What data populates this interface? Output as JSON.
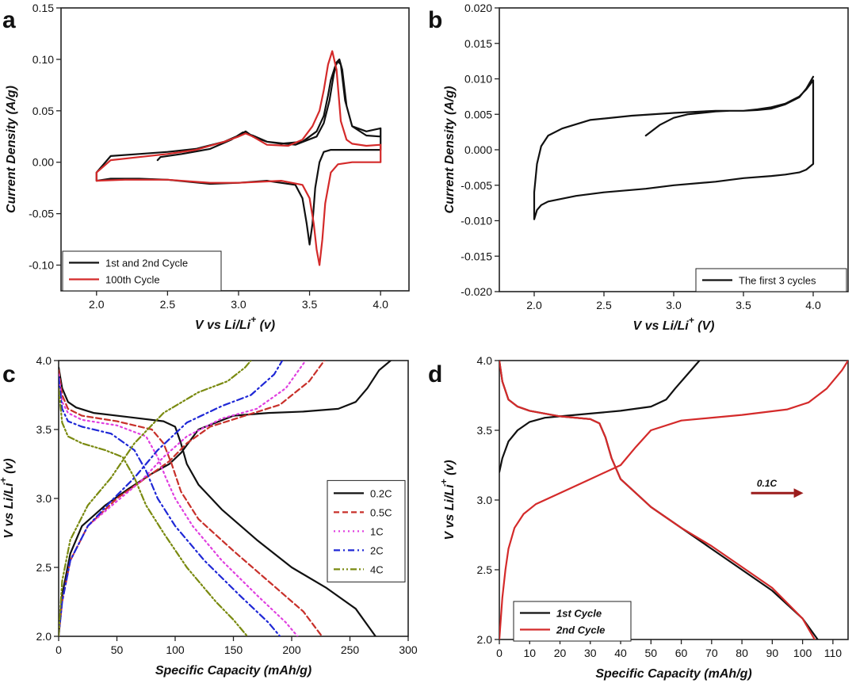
{
  "chart_data": [
    {
      "panel": "a",
      "type": "line",
      "xlabel": "V vs Li/Li",
      "xlabel_sup": "+",
      "xlabel_tail": " (v)",
      "ylabel": "Current Density (A/g)",
      "xlim": [
        1.75,
        4.2
      ],
      "ylim": [
        -0.125,
        0.15
      ],
      "xticks": [
        "2.0",
        "2.5",
        "3.0",
        "3.5",
        "4.0"
      ],
      "xtick_values": [
        2.0,
        2.5,
        3.0,
        3.5,
        4.0
      ],
      "yticks": [
        "-0.10",
        "-0.05",
        "0.00",
        "0.05",
        "0.10",
        "0.15"
      ],
      "ytick_values": [
        -0.1,
        -0.05,
        0.0,
        0.05,
        0.1,
        0.15
      ],
      "legend_position": "bottom-left",
      "series": [
        {
          "name": "1st and 2nd Cycle",
          "color": "#111111",
          "dash": "",
          "x": [
            2.43,
            2.45,
            2.6,
            2.8,
            2.95,
            3.03,
            3.1,
            3.2,
            3.4,
            3.55,
            3.6,
            3.64,
            3.67,
            3.69,
            3.71,
            3.73,
            3.76,
            3.8,
            3.9,
            4.0,
            4.0,
            3.95,
            3.8,
            3.65,
            3.6,
            3.57,
            3.54,
            3.52,
            3.5,
            3.48,
            3.45,
            3.4,
            3.2,
            3.0,
            2.8,
            2.5,
            2.3,
            2.1,
            2.0,
            2.0,
            2.1,
            2.3,
            2.5,
            2.7,
            2.9,
            3.0,
            3.05,
            3.1,
            3.2,
            3.3,
            3.45,
            3.55,
            3.6,
            3.63,
            3.65,
            3.68,
            3.7,
            3.72,
            3.75,
            3.8,
            3.9,
            4.0
          ],
          "y": [
            0.002,
            0.005,
            0.008,
            0.013,
            0.022,
            0.029,
            0.026,
            0.02,
            0.017,
            0.025,
            0.038,
            0.06,
            0.085,
            0.097,
            0.1,
            0.09,
            0.055,
            0.035,
            0.03,
            0.033,
            0.012,
            0.012,
            0.012,
            0.012,
            0.01,
            0.0,
            -0.025,
            -0.06,
            -0.08,
            -0.06,
            -0.035,
            -0.022,
            -0.018,
            -0.02,
            -0.021,
            -0.017,
            -0.016,
            -0.016,
            -0.018,
            -0.01,
            0.006,
            0.008,
            0.01,
            0.013,
            0.02,
            0.026,
            0.03,
            0.025,
            0.02,
            0.018,
            0.02,
            0.03,
            0.045,
            0.065,
            0.08,
            0.093,
            0.098,
            0.095,
            0.06,
            0.035,
            0.026,
            0.025
          ]
        },
        {
          "name": "100th Cycle",
          "color": "#d42a2a",
          "dash": "",
          "x": [
            2.0,
            2.1,
            2.3,
            2.5,
            2.7,
            2.9,
            3.0,
            3.05,
            3.1,
            3.2,
            3.35,
            3.45,
            3.52,
            3.57,
            3.6,
            3.63,
            3.66,
            3.69,
            3.72,
            3.76,
            3.8,
            3.9,
            4.0,
            4.0,
            3.9,
            3.8,
            3.7,
            3.65,
            3.61,
            3.59,
            3.57,
            3.55,
            3.53,
            3.5,
            3.45,
            3.3,
            3.0,
            2.8,
            2.5,
            2.2,
            2.0,
            2.0
          ],
          "y": [
            -0.01,
            0.002,
            0.005,
            0.008,
            0.012,
            0.02,
            0.025,
            0.028,
            0.025,
            0.017,
            0.016,
            0.022,
            0.035,
            0.05,
            0.07,
            0.095,
            0.108,
            0.09,
            0.04,
            0.022,
            0.018,
            0.016,
            0.017,
            0.0,
            0.0,
            0.0,
            -0.002,
            -0.01,
            -0.04,
            -0.075,
            -0.1,
            -0.085,
            -0.06,
            -0.035,
            -0.022,
            -0.018,
            -0.02,
            -0.02,
            -0.017,
            -0.017,
            -0.018,
            -0.01
          ]
        }
      ]
    },
    {
      "panel": "b",
      "type": "line",
      "xlabel": "V vs Li/Li",
      "xlabel_sup": "+",
      "xlabel_tail": " (V)",
      "ylabel": "Current Density (A/g)",
      "xlim": [
        1.75,
        4.25
      ],
      "ylim": [
        -0.02,
        0.02
      ],
      "xticks": [
        "2.0",
        "2.5",
        "3.0",
        "3.5",
        "4.0"
      ],
      "xtick_values": [
        2.0,
        2.5,
        3.0,
        3.5,
        4.0
      ],
      "yticks": [
        "-0.020",
        "-0.015",
        "-0.010",
        "-0.005",
        "0.000",
        "0.005",
        "0.010",
        "0.015",
        "0.020"
      ],
      "ytick_values": [
        -0.02,
        -0.015,
        -0.01,
        -0.005,
        0.0,
        0.005,
        0.01,
        0.015,
        0.02
      ],
      "legend_position": "bottom-right",
      "series": [
        {
          "name": "The first 3 cycles",
          "color": "#111111",
          "dash": "",
          "x": [
            2.8,
            2.9,
            3.0,
            3.1,
            3.2,
            3.3,
            3.4,
            3.5,
            3.6,
            3.7,
            3.8,
            3.9,
            3.95,
            4.0,
            4.0,
            3.95,
            3.9,
            3.8,
            3.7,
            3.5,
            3.3,
            3.0,
            2.8,
            2.5,
            2.3,
            2.1,
            2.05,
            2.02,
            2.0,
            2.0,
            2.02,
            2.05,
            2.1,
            2.2,
            2.4,
            2.7,
            3.0,
            3.3,
            3.5,
            3.6,
            3.7,
            3.8,
            3.9,
            3.95,
            4.0
          ],
          "y": [
            0.002,
            0.0035,
            0.0045,
            0.005,
            0.0052,
            0.0054,
            0.0055,
            0.0055,
            0.0057,
            0.006,
            0.0065,
            0.0075,
            0.0085,
            0.0098,
            -0.002,
            -0.0028,
            -0.0032,
            -0.0035,
            -0.0037,
            -0.004,
            -0.0045,
            -0.005,
            -0.0055,
            -0.006,
            -0.0065,
            -0.0073,
            -0.0078,
            -0.0085,
            -0.0098,
            -0.006,
            -0.002,
            0.0005,
            0.002,
            0.003,
            0.0042,
            0.0048,
            0.0052,
            0.0055,
            0.0055,
            0.0056,
            0.0058,
            0.0064,
            0.0074,
            0.0086,
            0.0103
          ]
        }
      ]
    },
    {
      "panel": "c",
      "type": "line",
      "xlabel": "Specific Capacity (mAh/g)",
      "ylabel": "V vs Li/Li",
      "ylabel_sup": "+",
      "ylabel_tail": " (v)",
      "xlim": [
        0,
        300
      ],
      "ylim": [
        2.0,
        4.0
      ],
      "xticks": [
        "0",
        "50",
        "100",
        "150",
        "200",
        "250",
        "300"
      ],
      "xtick_values": [
        0,
        50,
        100,
        150,
        200,
        250,
        300
      ],
      "yticks": [
        "2.0",
        "2.5",
        "3.0",
        "3.5",
        "4.0"
      ],
      "ytick_values": [
        2.0,
        2.5,
        3.0,
        3.5,
        4.0
      ],
      "legend_position": "center-right",
      "series": [
        {
          "name": "0.2C",
          "color": "#111111",
          "dash": "",
          "charge": {
            "x": [
              0,
              3,
              10,
              20,
              40,
              60,
              80,
              95,
              105,
              120,
              150,
              180,
              210,
              240,
              255,
              265,
              275,
              285
            ],
            "y": [
              2.0,
              2.3,
              2.6,
              2.8,
              2.95,
              3.07,
              3.18,
              3.25,
              3.33,
              3.5,
              3.6,
              3.62,
              3.63,
              3.65,
              3.7,
              3.8,
              3.93,
              4.0
            ]
          },
          "discharge": {
            "x": [
              0,
              3,
              8,
              15,
              30,
              60,
              90,
              100,
              105,
              110,
              120,
              140,
              170,
              200,
              230,
              255,
              272
            ],
            "y": [
              3.95,
              3.8,
              3.7,
              3.66,
              3.62,
              3.59,
              3.56,
              3.52,
              3.4,
              3.25,
              3.1,
              2.92,
              2.7,
              2.5,
              2.35,
              2.2,
              2.0
            ]
          }
        },
        {
          "name": "0.5C",
          "color": "#c8302a",
          "dash": "7,4",
          "charge": {
            "x": [
              0,
              3,
              10,
              25,
              50,
              75,
              95,
              110,
              130,
              160,
              190,
              215,
              228
            ],
            "y": [
              2.0,
              2.25,
              2.55,
              2.8,
              3.0,
              3.15,
              3.27,
              3.4,
              3.52,
              3.6,
              3.68,
              3.85,
              4.0
            ]
          },
          "discharge": {
            "x": [
              0,
              3,
              8,
              20,
              50,
              80,
              90,
              97,
              105,
              120,
              150,
              180,
              210,
              226
            ],
            "y": [
              3.93,
              3.75,
              3.65,
              3.6,
              3.56,
              3.5,
              3.4,
              3.25,
              3.05,
              2.85,
              2.62,
              2.4,
              2.18,
              2.0
            ]
          }
        },
        {
          "name": "1C",
          "color": "#e040e0",
          "dash": "2,4",
          "charge": {
            "x": [
              0,
              3,
              10,
              25,
              50,
              70,
              90,
              110,
              140,
              170,
              195,
              212
            ],
            "y": [
              2.0,
              2.25,
              2.55,
              2.8,
              2.98,
              3.12,
              3.3,
              3.45,
              3.58,
              3.65,
              3.8,
              4.0
            ]
          },
          "discharge": {
            "x": [
              0,
              3,
              8,
              20,
              50,
              75,
              85,
              92,
              100,
              115,
              140,
              170,
              195,
              205
            ],
            "y": [
              3.9,
              3.7,
              3.62,
              3.57,
              3.53,
              3.45,
              3.3,
              3.15,
              3.0,
              2.8,
              2.55,
              2.3,
              2.1,
              2.0
            ]
          }
        },
        {
          "name": "2C",
          "color": "#1f28d6",
          "dash": "8,4,2,4",
          "charge": {
            "x": [
              0,
              3,
              10,
              25,
              45,
              65,
              85,
              110,
              140,
              165,
              185,
              192
            ],
            "y": [
              2.0,
              2.25,
              2.55,
              2.8,
              2.98,
              3.15,
              3.35,
              3.55,
              3.67,
              3.75,
              3.9,
              4.0
            ]
          },
          "discharge": {
            "x": [
              0,
              3,
              8,
              20,
              45,
              65,
              75,
              85,
              100,
              125,
              155,
              180,
              190
            ],
            "y": [
              3.88,
              3.65,
              3.56,
              3.52,
              3.47,
              3.35,
              3.2,
              3.0,
              2.8,
              2.55,
              2.3,
              2.1,
              2.0
            ]
          }
        },
        {
          "name": "4C",
          "color": "#7a8a10",
          "dash": "8,3,2,3,2,3",
          "charge": {
            "x": [
              0,
              3,
              10,
              25,
              45,
              65,
              90,
              120,
              145,
              160,
              165
            ],
            "y": [
              2.0,
              2.4,
              2.7,
              2.95,
              3.15,
              3.4,
              3.62,
              3.77,
              3.85,
              3.95,
              4.0
            ]
          },
          "discharge": {
            "x": [
              0,
              3,
              8,
              20,
              40,
              55,
              65,
              75,
              90,
              110,
              135,
              150,
              162
            ],
            "y": [
              3.8,
              3.55,
              3.45,
              3.4,
              3.35,
              3.3,
              3.15,
              2.95,
              2.75,
              2.5,
              2.25,
              2.12,
              2.0
            ]
          }
        }
      ]
    },
    {
      "panel": "d",
      "type": "line",
      "xlabel": "Specific Capacity (mAh/g)",
      "ylabel": "V vs Li/Li",
      "ylabel_sup": "+",
      "ylabel_tail": " (v)",
      "xlim": [
        0,
        115
      ],
      "ylim": [
        2.0,
        4.0
      ],
      "xticks": [
        "0",
        "10",
        "20",
        "30",
        "40",
        "50",
        "60",
        "70",
        "80",
        "90",
        "100",
        "110"
      ],
      "xtick_values": [
        0,
        10,
        20,
        30,
        40,
        50,
        60,
        70,
        80,
        90,
        100,
        110
      ],
      "yticks": [
        "2.0",
        "2.5",
        "3.0",
        "3.5",
        "4.0"
      ],
      "ytick_values": [
        2.0,
        2.5,
        3.0,
        3.5,
        4.0
      ],
      "legend_position": "bottom-left",
      "annotation": "0.1C",
      "series": [
        {
          "name": "1st Cycle",
          "color": "#111111",
          "dash": "",
          "charge": {
            "x": [
              0,
              1,
              3,
              6,
              10,
              15,
              20,
              30,
              40,
              50,
              55,
              58,
              62,
              66
            ],
            "y": [
              3.2,
              3.3,
              3.42,
              3.5,
              3.56,
              3.59,
              3.6,
              3.62,
              3.64,
              3.67,
              3.72,
              3.8,
              3.9,
              4.0
            ]
          },
          "discharge": {
            "x": [
              0,
              1,
              3,
              6,
              10,
              20,
              30,
              33,
              35,
              37,
              40,
              45,
              50,
              60,
              70,
              80,
              90,
              100,
              105
            ],
            "y": [
              4.0,
              3.85,
              3.72,
              3.67,
              3.64,
              3.6,
              3.58,
              3.55,
              3.45,
              3.3,
              3.15,
              3.05,
              2.95,
              2.8,
              2.65,
              2.5,
              2.35,
              2.15,
              2.0
            ]
          }
        },
        {
          "name": "2nd Cycle",
          "color": "#d42a2a",
          "dash": "",
          "charge": {
            "x": [
              0,
              0.5,
              1,
              2,
              3,
              5,
              8,
              12,
              20,
              30,
              40,
              45,
              50,
              60,
              80,
              95,
              102,
              108,
              113,
              115
            ],
            "y": [
              2.0,
              2.15,
              2.3,
              2.5,
              2.65,
              2.8,
              2.9,
              2.97,
              3.05,
              3.15,
              3.25,
              3.38,
              3.5,
              3.57,
              3.61,
              3.65,
              3.7,
              3.8,
              3.93,
              4.0
            ]
          },
          "discharge": {
            "x": [
              0,
              1,
              3,
              6,
              10,
              20,
              30,
              33,
              35,
              37,
              40,
              45,
              50,
              60,
              70,
              80,
              90,
              100,
              104
            ],
            "y": [
              4.0,
              3.85,
              3.72,
              3.67,
              3.64,
              3.6,
              3.58,
              3.55,
              3.45,
              3.3,
              3.15,
              3.05,
              2.95,
              2.8,
              2.67,
              2.52,
              2.37,
              2.15,
              2.0
            ]
          }
        }
      ]
    }
  ]
}
